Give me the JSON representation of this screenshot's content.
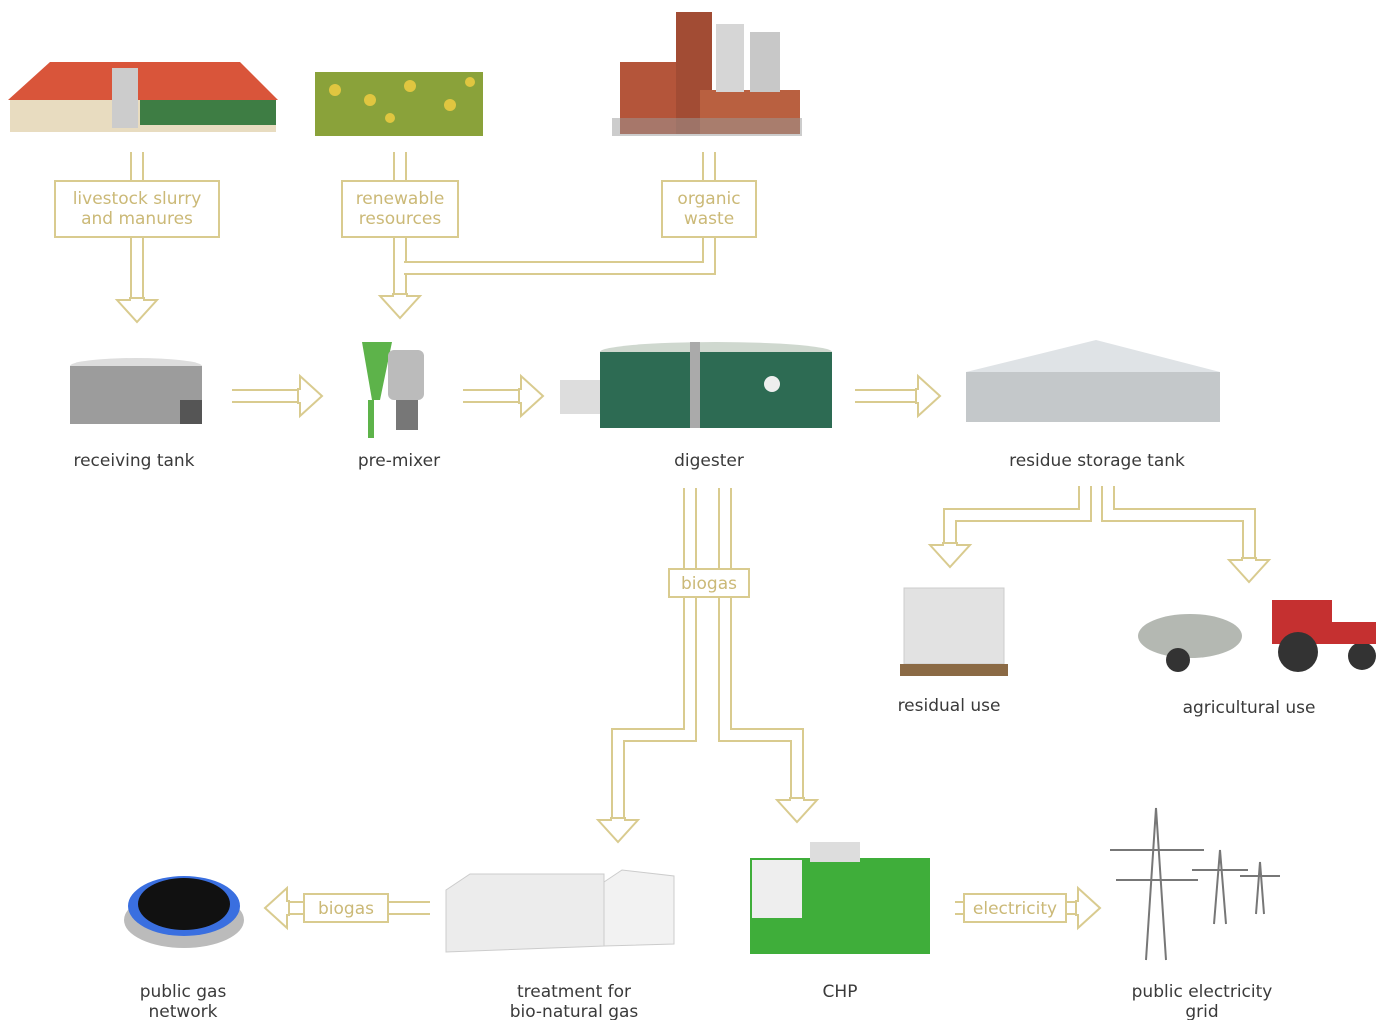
{
  "sources": [
    {
      "label": [
        "livestock slurry",
        "and manures"
      ]
    },
    {
      "label": [
        "renewable",
        "resources"
      ]
    },
    {
      "label": [
        "organic",
        "waste"
      ]
    }
  ],
  "nodes": [
    {
      "label": [
        "receiving tank"
      ]
    },
    {
      "label": [
        "pre-mixer"
      ]
    },
    {
      "label": [
        "digester"
      ]
    },
    {
      "label": [
        "residue storage tank"
      ]
    },
    {
      "label": [
        "residual use"
      ]
    },
    {
      "label": [
        "agricultural use"
      ]
    },
    {
      "label": [
        "public gas",
        "network"
      ]
    },
    {
      "label": [
        "treatment for",
        "bio-natural gas"
      ]
    },
    {
      "label": [
        "CHP"
      ]
    },
    {
      "label": [
        "public electricity",
        "grid"
      ]
    }
  ],
  "flows": [
    {
      "label": "biogas"
    },
    {
      "label": "biogas"
    },
    {
      "label": "electricity"
    }
  ]
}
